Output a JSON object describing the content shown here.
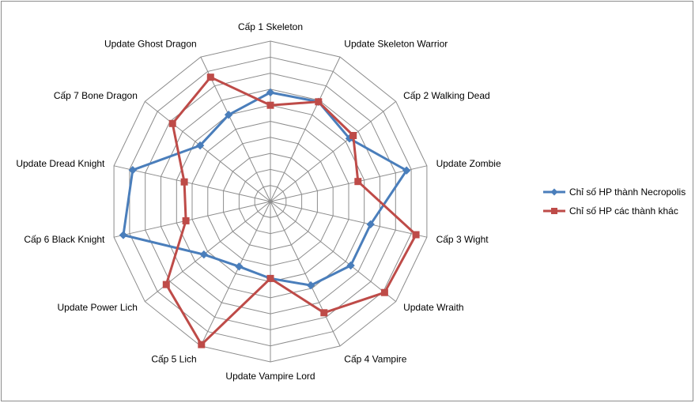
{
  "chart_data": {
    "type": "radar",
    "title": "",
    "categories": [
      "Cấp 1 Skeleton",
      "Update Skeleton Warrior",
      "Cấp 2 Walking Dead",
      "Update Zombie",
      "Cấp 3 Wight",
      "Update Wraith",
      "Cấp 4 Vampire",
      "Update Vampire Lord",
      "Cấp 5 Lich",
      "Update Power Lich",
      "Cấp 6 Black Knight",
      "Update Dread Knight",
      "Cấp 7 Bone Dragon",
      "Update Ghost Dragon"
    ],
    "rmax": 10,
    "grid_levels": 10,
    "grid": true,
    "legend_position": "right",
    "series": [
      {
        "name": "Chỉ số HP thành Necropolis",
        "color": "#4a7ebb",
        "marker": "diamond",
        "values": [
          6.8,
          6.9,
          6.3,
          8.7,
          6.4,
          6.4,
          5.8,
          4.8,
          4.5,
          5.3,
          9.4,
          8.8,
          5.6,
          6.0
        ]
      },
      {
        "name": "Chỉ số HP các thành khác",
        "color": "#be4b48",
        "marker": "square",
        "values": [
          6.0,
          6.9,
          6.6,
          5.6,
          9.3,
          9.1,
          7.7,
          4.8,
          9.9,
          8.3,
          5.4,
          5.5,
          7.8,
          8.6
        ]
      }
    ]
  }
}
